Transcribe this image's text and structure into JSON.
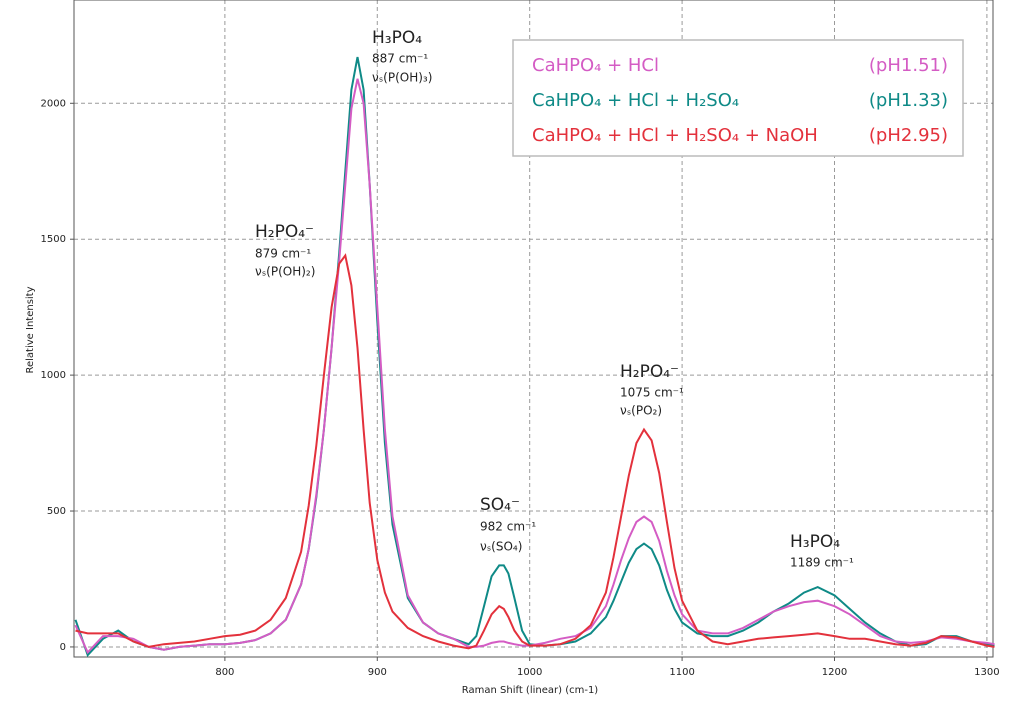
{
  "chart_data": {
    "type": "line",
    "x_label": "Raman Shift (linear) (cm-1)",
    "y_label": "Relative Intensity",
    "xlim": [
      701,
      1304
    ],
    "ylim": [
      -37,
      2380
    ],
    "xticks": [
      800,
      900,
      1000,
      1100,
      1200,
      1300
    ],
    "yticks": [
      0,
      500,
      1000,
      1500,
      2000
    ],
    "grid": true,
    "legend_position": "upper right",
    "x": [
      702,
      710,
      720,
      730,
      740,
      750,
      760,
      770,
      780,
      790,
      800,
      810,
      820,
      830,
      840,
      850,
      855,
      860,
      865,
      870,
      875,
      879,
      883,
      887,
      891,
      895,
      900,
      905,
      910,
      920,
      930,
      940,
      950,
      960,
      965,
      970,
      975,
      980,
      983,
      986,
      990,
      995,
      1000,
      1010,
      1020,
      1030,
      1040,
      1050,
      1055,
      1060,
      1065,
      1070,
      1075,
      1080,
      1085,
      1090,
      1095,
      1100,
      1110,
      1120,
      1130,
      1140,
      1150,
      1160,
      1170,
      1180,
      1189,
      1200,
      1210,
      1220,
      1230,
      1240,
      1250,
      1260,
      1270,
      1280,
      1290,
      1300,
      1305
    ],
    "series": [
      {
        "name": "CaHPO₄ + HCl",
        "ph": "(pH1.51)",
        "color": "#d45cc4",
        "values": [
          80,
          -20,
          40,
          40,
          30,
          0,
          -10,
          0,
          5,
          10,
          10,
          15,
          25,
          50,
          100,
          230,
          360,
          560,
          800,
          1100,
          1420,
          1700,
          1980,
          2090,
          2000,
          1700,
          1250,
          800,
          480,
          190,
          90,
          50,
          30,
          0,
          0,
          5,
          15,
          20,
          20,
          15,
          10,
          5,
          5,
          15,
          30,
          40,
          70,
          150,
          230,
          320,
          400,
          460,
          480,
          460,
          390,
          280,
          190,
          120,
          60,
          50,
          50,
          70,
          100,
          130,
          150,
          165,
          170,
          150,
          120,
          80,
          40,
          20,
          15,
          20,
          35,
          30,
          20,
          15,
          10
        ]
      },
      {
        "name": "CaHPO₄ + HCl  + H₂SO₄",
        "ph": "(pH1.33)",
        "color": "#0f8a87",
        "values": [
          100,
          -30,
          30,
          60,
          20,
          0,
          -10,
          0,
          5,
          10,
          10,
          15,
          25,
          50,
          100,
          230,
          360,
          550,
          800,
          1100,
          1450,
          1750,
          2050,
          2170,
          2050,
          1700,
          1200,
          750,
          450,
          180,
          90,
          50,
          30,
          10,
          40,
          150,
          260,
          300,
          300,
          270,
          180,
          60,
          10,
          5,
          10,
          20,
          50,
          110,
          170,
          240,
          310,
          360,
          380,
          360,
          300,
          210,
          140,
          90,
          50,
          40,
          40,
          60,
          90,
          130,
          160,
          200,
          220,
          190,
          140,
          90,
          50,
          20,
          5,
          10,
          40,
          40,
          20,
          10,
          5
        ]
      },
      {
        "name": "CaHPO₄ + HCl  + H₂SO₄ + NaOH",
        "ph": "(pH2.95)",
        "color": "#e3313c",
        "values": [
          60,
          50,
          50,
          50,
          20,
          0,
          10,
          15,
          20,
          30,
          40,
          45,
          60,
          100,
          180,
          350,
          520,
          740,
          1000,
          1250,
          1410,
          1440,
          1330,
          1100,
          800,
          530,
          320,
          200,
          130,
          70,
          40,
          20,
          5,
          -5,
          5,
          60,
          120,
          150,
          140,
          110,
          60,
          20,
          5,
          5,
          10,
          30,
          80,
          200,
          330,
          480,
          630,
          750,
          800,
          760,
          640,
          460,
          290,
          170,
          60,
          20,
          10,
          20,
          30,
          35,
          40,
          45,
          50,
          40,
          30,
          30,
          20,
          10,
          5,
          15,
          40,
          35,
          20,
          5,
          0
        ]
      }
    ],
    "annotations": [
      {
        "species": "H₃PO₄",
        "shift": "887 cm⁻¹",
        "mode": "νₛ(P(OH)₃)"
      },
      {
        "species": "H₂PO₄⁻",
        "shift": "879 cm⁻¹",
        "mode": "νₛ(P(OH)₂)"
      },
      {
        "species": "SO₄⁻",
        "shift": "982 cm⁻¹",
        "mode": "νₛ(SO₄)"
      },
      {
        "species": "H₂PO₄⁻",
        "shift": "1075 cm⁻¹",
        "mode": "νₛ(PO₂)"
      },
      {
        "species": "H₃PO₄",
        "shift": "1189 cm⁻¹"
      }
    ]
  }
}
